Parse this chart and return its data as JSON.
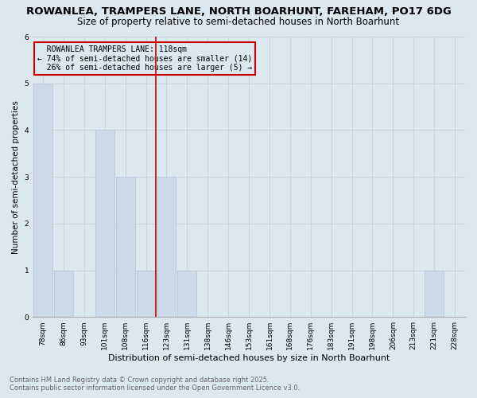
{
  "title": "ROWANLEA, TRAMPERS LANE, NORTH BOARHUNT, FAREHAM, PO17 6DG",
  "subtitle": "Size of property relative to semi-detached houses in North Boarhunt",
  "xlabel": "Distribution of semi-detached houses by size in North Boarhunt",
  "ylabel": "Number of semi-detached properties",
  "footnote1": "Contains HM Land Registry data © Crown copyright and database right 2025.",
  "footnote2": "Contains public sector information licensed under the Open Government Licence v3.0.",
  "annotation_line1": "  ROWANLEA TRAMPERS LANE: 118sqm",
  "annotation_line2": "← 74% of semi-detached houses are smaller (14)",
  "annotation_line3": "  26% of semi-detached houses are larger (5) →",
  "property_bin_index": 5,
  "categories": [
    "78sqm",
    "86sqm",
    "93sqm",
    "101sqm",
    "108sqm",
    "116sqm",
    "123sqm",
    "131sqm",
    "138sqm",
    "146sqm",
    "153sqm",
    "161sqm",
    "168sqm",
    "176sqm",
    "183sqm",
    "191sqm",
    "198sqm",
    "206sqm",
    "213sqm",
    "221sqm",
    "228sqm"
  ],
  "values": [
    5,
    1,
    0,
    4,
    3,
    1,
    3,
    1,
    0,
    0,
    0,
    0,
    0,
    0,
    0,
    0,
    0,
    0,
    0,
    1,
    0
  ],
  "bar_color": "#ccd9e8",
  "bar_edge_color": "#b0c4d8",
  "vline_color": "#cc0000",
  "vline_linewidth": 1.2,
  "annotation_box_color": "#cc0000",
  "ylim": [
    0,
    6
  ],
  "yticks": [
    0,
    1,
    2,
    3,
    4,
    5,
    6
  ],
  "grid_color": "#c8d4e0",
  "plot_bg_color": "#dce8f0",
  "fig_bg_color": "#dce8f0",
  "title_fontsize": 9.5,
  "subtitle_fontsize": 8.5,
  "xlabel_fontsize": 8,
  "ylabel_fontsize": 7.5,
  "tick_fontsize": 6.5,
  "annotation_fontsize": 7,
  "footnote_fontsize": 6
}
